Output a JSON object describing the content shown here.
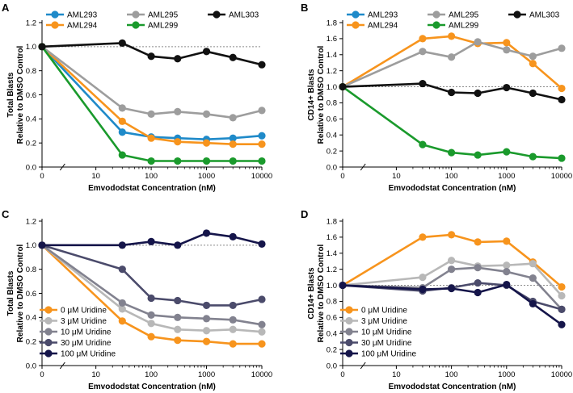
{
  "colors": {
    "AML293": "#1f8ac9",
    "AML294": "#f7941d",
    "AML295": "#9d9d9d",
    "AML299": "#1a9a2c",
    "AML303": "#111111",
    "U0": "#f7941d",
    "U3": "#b8b8b8",
    "U10": "#82828f",
    "U30": "#4b4b6b",
    "U100": "#15154a",
    "reference": "#8a8a8a"
  },
  "chart_data": [
    {
      "panel": "A",
      "type": "line",
      "xlabel": "Emvododstat Concentration (nM)",
      "ylabel": "Total Blasts\nRelative to DMSO Control",
      "x": [
        0,
        30,
        100,
        300,
        1000,
        3000,
        10000
      ],
      "x_ticks": [
        0,
        10,
        100,
        1000,
        10000
      ],
      "x_tick_labels": [
        "0",
        "10",
        "100",
        "1000",
        "10000"
      ],
      "ylim": [
        0,
        1.2
      ],
      "y_ticks": [
        0,
        0.2,
        0.4,
        0.6,
        0.8,
        1.0,
        1.2
      ],
      "y_tick_labels": [
        "0.0",
        "0.2",
        "0.4",
        "0.6",
        "0.8",
        "1.0",
        "1.2"
      ],
      "reference_line": 1.0,
      "legend_position": "top",
      "legend_layout": [
        [
          "AML293",
          "AML295",
          "AML303"
        ],
        [
          "AML294",
          "AML299"
        ]
      ],
      "series": [
        {
          "name": "AML293",
          "color_key": "AML293",
          "values": [
            1.0,
            0.29,
            0.25,
            0.24,
            0.23,
            0.24,
            0.26
          ]
        },
        {
          "name": "AML294",
          "color_key": "AML294",
          "values": [
            1.0,
            0.38,
            0.24,
            0.21,
            0.2,
            0.19,
            0.19
          ]
        },
        {
          "name": "AML295",
          "color_key": "AML295",
          "values": [
            1.0,
            0.49,
            0.44,
            0.46,
            0.44,
            0.41,
            0.47
          ]
        },
        {
          "name": "AML299",
          "color_key": "AML299",
          "values": [
            1.0,
            0.1,
            0.05,
            0.05,
            0.05,
            0.05,
            0.05
          ]
        },
        {
          "name": "AML303",
          "color_key": "AML303",
          "values": [
            1.0,
            1.03,
            0.92,
            0.9,
            0.96,
            0.91,
            0.85
          ]
        }
      ]
    },
    {
      "panel": "B",
      "type": "line",
      "xlabel": "Emvododstat Concentration (nM)",
      "ylabel": "CD14+ Blasts\nRelative to DMSO Control",
      "x": [
        0,
        30,
        100,
        300,
        1000,
        3000,
        10000
      ],
      "x_ticks": [
        0,
        10,
        100,
        1000,
        10000
      ],
      "x_tick_labels": [
        "0",
        "10",
        "100",
        "1000",
        "10000"
      ],
      "ylim": [
        0,
        1.8
      ],
      "y_ticks": [
        0,
        0.2,
        0.4,
        0.6,
        0.8,
        1.0,
        1.2,
        1.4,
        1.6,
        1.8
      ],
      "y_tick_labels": [
        "0.0",
        "0.2",
        "0.4",
        "0.6",
        "0.8",
        "1.0",
        "1.2",
        "1.4",
        "1.6",
        "1.8"
      ],
      "reference_line": 1.0,
      "legend_position": "top",
      "legend_layout": [
        [
          "AML293",
          "AML295",
          "AML303"
        ],
        [
          "AML294",
          "AML299"
        ]
      ],
      "series": [
        {
          "name": "AML293",
          "color_key": "AML293",
          "values": [
            null,
            null,
            null,
            null,
            null,
            null,
            null
          ]
        },
        {
          "name": "AML294",
          "color_key": "AML294",
          "values": [
            1.0,
            1.6,
            1.63,
            1.54,
            1.55,
            1.29,
            0.98
          ]
        },
        {
          "name": "AML295",
          "color_key": "AML295",
          "values": [
            1.0,
            1.44,
            1.37,
            1.56,
            1.46,
            1.38,
            1.48
          ]
        },
        {
          "name": "AML299",
          "color_key": "AML299",
          "values": [
            1.0,
            0.28,
            0.18,
            0.15,
            0.19,
            0.13,
            0.11
          ]
        },
        {
          "name": "AML303",
          "color_key": "AML303",
          "values": [
            1.0,
            1.04,
            0.93,
            0.92,
            0.99,
            0.92,
            0.84
          ]
        }
      ]
    },
    {
      "panel": "C",
      "type": "line",
      "xlabel": "Emvododstat Concentration (nM)",
      "ylabel": "Total Blasts\nRelative to DMSO Control",
      "x": [
        0,
        30,
        100,
        300,
        1000,
        3000,
        10000
      ],
      "x_ticks": [
        0,
        10,
        100,
        1000,
        10000
      ],
      "x_tick_labels": [
        "0",
        "10",
        "100",
        "1000",
        "10000"
      ],
      "ylim": [
        0,
        1.2
      ],
      "y_ticks": [
        0,
        0.2,
        0.4,
        0.6,
        0.8,
        1.0,
        1.2
      ],
      "y_tick_labels": [
        "0.0",
        "0.2",
        "0.4",
        "0.6",
        "0.8",
        "1.0",
        "1.2"
      ],
      "reference_line": 1.0,
      "legend_position": "bottom-left",
      "legend_layout": [
        [
          "0 μM Uridine"
        ],
        [
          "3 μM Uridine"
        ],
        [
          "10 μM Uridine"
        ],
        [
          "30 μM Uridine"
        ],
        [
          "100 μM Uridine"
        ]
      ],
      "series": [
        {
          "name": "0 μM Uridine",
          "color_key": "U0",
          "values": [
            1.0,
            0.37,
            0.24,
            0.21,
            0.2,
            0.18,
            0.18
          ]
        },
        {
          "name": "3 μM Uridine",
          "color_key": "U3",
          "values": [
            1.0,
            0.47,
            0.35,
            0.3,
            0.29,
            0.3,
            0.28
          ]
        },
        {
          "name": "10 μM Uridine",
          "color_key": "U10",
          "values": [
            1.0,
            0.52,
            0.42,
            0.4,
            0.39,
            0.38,
            0.34
          ]
        },
        {
          "name": "30 μM Uridine",
          "color_key": "U30",
          "values": [
            1.0,
            0.8,
            0.56,
            0.54,
            0.5,
            0.5,
            0.55
          ]
        },
        {
          "name": "100 μM Uridine",
          "color_key": "U100",
          "values": [
            1.0,
            1.0,
            1.03,
            1.0,
            1.1,
            1.07,
            1.01
          ]
        }
      ]
    },
    {
      "panel": "D",
      "type": "line",
      "xlabel": "Emvododstat Concentration (nM)",
      "ylabel": "CD14+ Blasts\nRelative to DMSO Control",
      "x": [
        0,
        30,
        100,
        300,
        1000,
        3000,
        10000
      ],
      "x_ticks": [
        0,
        10,
        100,
        1000,
        10000
      ],
      "x_tick_labels": [
        "0",
        "10",
        "100",
        "1000",
        "10000"
      ],
      "ylim": [
        0,
        1.8
      ],
      "y_ticks": [
        0,
        0.2,
        0.4,
        0.6,
        0.8,
        1.0,
        1.2,
        1.4,
        1.6,
        1.8
      ],
      "y_tick_labels": [
        "0.0",
        "0.2",
        "0.4",
        "0.6",
        "0.8",
        "1.0",
        "1.2",
        "1.4",
        "1.6",
        "1.8"
      ],
      "reference_line": 1.0,
      "legend_position": "bottom-left",
      "legend_layout": [
        [
          "0 μM Uridine"
        ],
        [
          "3 μM Uridine"
        ],
        [
          "10 μM Uridine"
        ],
        [
          "30 μM Uridine"
        ],
        [
          "100 μM Uridine"
        ]
      ],
      "series": [
        {
          "name": "0 μM Uridine",
          "color_key": "U0",
          "values": [
            1.0,
            1.6,
            1.63,
            1.54,
            1.55,
            1.29,
            0.98
          ]
        },
        {
          "name": "3 μM Uridine",
          "color_key": "U3",
          "values": [
            1.0,
            1.1,
            1.31,
            1.24,
            1.25,
            1.27,
            0.87
          ]
        },
        {
          "name": "10 μM Uridine",
          "color_key": "U10",
          "values": [
            1.0,
            0.97,
            1.2,
            1.22,
            1.17,
            1.09,
            0.7
          ]
        },
        {
          "name": "30 μM Uridine",
          "color_key": "U30",
          "values": [
            1.0,
            0.93,
            0.97,
            1.03,
            1.0,
            0.8,
            0.7
          ]
        },
        {
          "name": "100 μM Uridine",
          "color_key": "U100",
          "values": [
            1.0,
            0.95,
            0.96,
            0.91,
            1.01,
            0.77,
            0.51
          ]
        }
      ]
    }
  ]
}
